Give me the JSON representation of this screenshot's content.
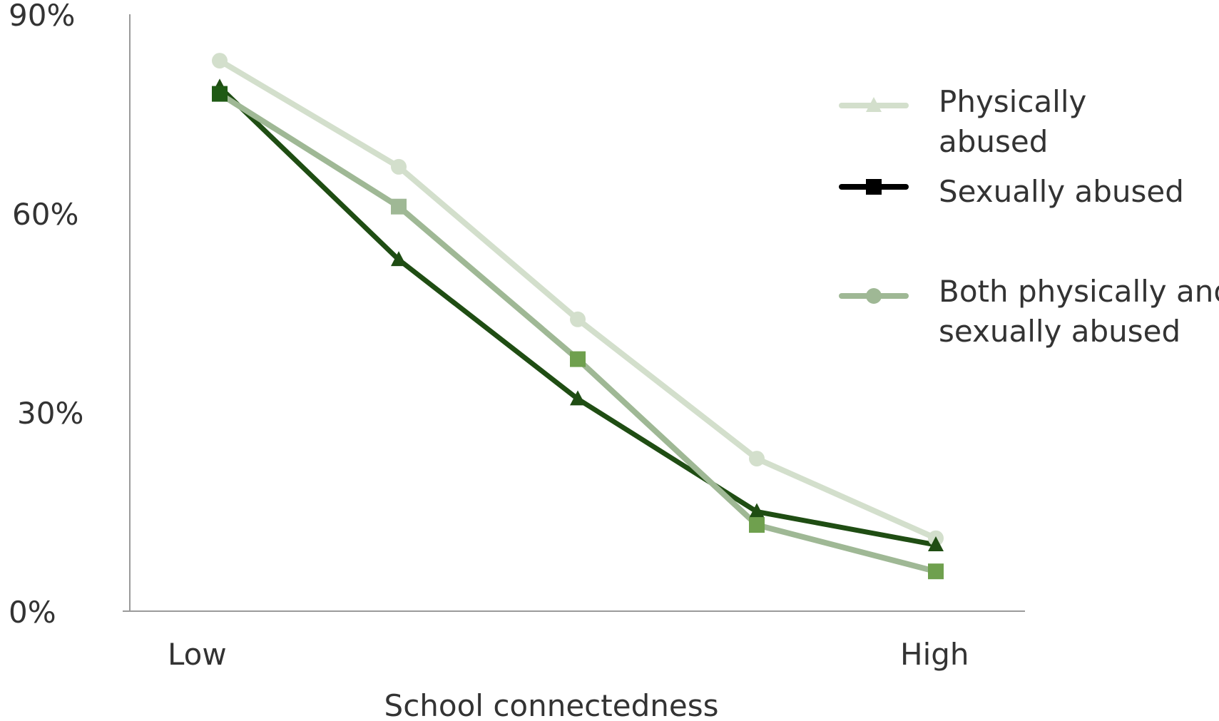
{
  "chart_data": {
    "type": "line",
    "title": "",
    "xlabel": "School connectedness",
    "ylabel": "",
    "x_tick_labels": [
      "Low",
      "High"
    ],
    "y_tick_labels": [
      "90%",
      "60%",
      "30%",
      "0%"
    ],
    "y_ticks": [
      90,
      60,
      30,
      0
    ],
    "ylim": [
      0,
      90
    ],
    "x_points": [
      1,
      2,
      3,
      4,
      5
    ],
    "grid": false,
    "legend_position": "right",
    "series": [
      {
        "name": "Physically abused",
        "name_lines": [
          "Physically",
          "abused"
        ],
        "values": [
          83,
          67,
          44,
          23,
          11
        ],
        "color": "#d3dfcc",
        "marker": "circle",
        "legend_marker": "triangle"
      },
      {
        "name": "Sexually abused",
        "name_lines": [
          "Sexually abused"
        ],
        "values": [
          79,
          53,
          32,
          15,
          10
        ],
        "color": "#1f4d13",
        "marker": "triangle",
        "legend_marker": "square",
        "legend_color": "#000000"
      },
      {
        "name": "Both physically and sexually abused",
        "name_lines": [
          "Both physically and",
          "sexually abused"
        ],
        "values": [
          78,
          61,
          38,
          13,
          6
        ],
        "color": "#9fb895",
        "marker": "square",
        "marker_colors": [
          "#1f5a14",
          "#9fb895",
          "#6fa04e",
          "#6fa04e",
          "#6fa04e"
        ],
        "legend_marker": "circle"
      }
    ]
  }
}
